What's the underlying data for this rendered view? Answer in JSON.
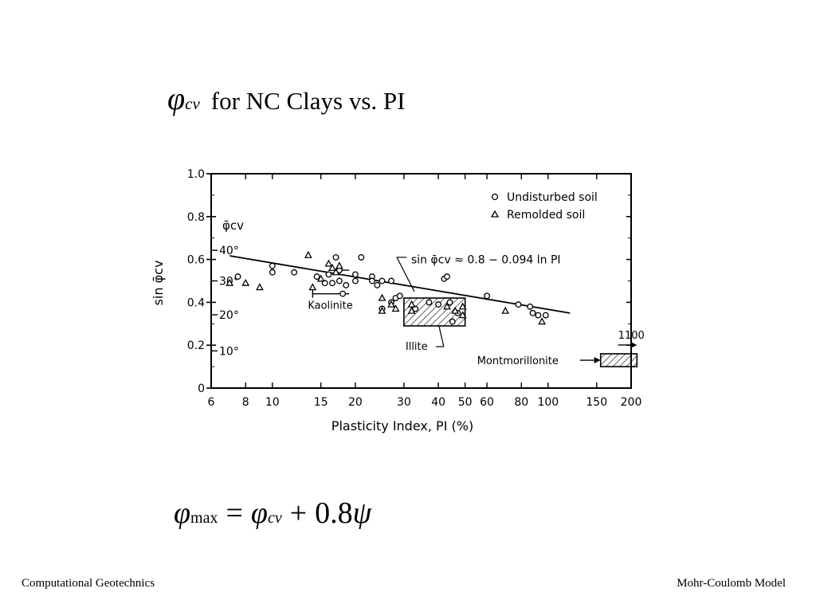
{
  "slide": {
    "title_symbol": "φ",
    "title_subscript": "cv",
    "title_text": "for NC Clays vs. PI",
    "formula": {
      "lhs_symbol": "φ",
      "lhs_subscript": "max",
      "equals": "=",
      "rhs_symbol": "φ",
      "rhs_subscript": "cv",
      "plus": "+",
      "coefficient": "0.8",
      "psi": "ψ"
    },
    "footer_left": "Computational Geotechnics",
    "footer_right": "Mohr-Coulomb Model"
  },
  "chart_data": {
    "type": "scatter",
    "xlabel": "Plasticity Index, PI (%)",
    "ylabel": "sin φ̄cv",
    "x_scale": "log",
    "xlim": [
      6,
      200
    ],
    "ylim": [
      0,
      1.0
    ],
    "x_ticks": [
      6,
      8,
      10,
      15,
      20,
      30,
      40,
      50,
      60,
      80,
      100,
      150,
      200
    ],
    "y_ticks": [
      0,
      0.2,
      0.4,
      0.6,
      0.8,
      1.0
    ],
    "y_tick_labels": [
      "0",
      "0.2",
      "0.4",
      "0.6",
      "0.8",
      "1.0"
    ],
    "angle_axis_label": "φ̄cv",
    "angle_ticks": [
      {
        "label": "40°",
        "deg": 40
      },
      {
        "label": "30°",
        "deg": 30
      },
      {
        "label": "20°",
        "deg": 20
      },
      {
        "label": "10°",
        "deg": 10
      }
    ],
    "legend": [
      {
        "marker": "circle",
        "label": "Undisturbed soil"
      },
      {
        "marker": "triangle",
        "label": "Remolded soil"
      }
    ],
    "legend_position": "top-right",
    "series": [
      {
        "name": "Undisturbed soil",
        "marker": "circle",
        "points": [
          [
            7.5,
            0.52
          ],
          [
            10,
            0.57
          ],
          [
            10,
            0.54
          ],
          [
            12,
            0.54
          ],
          [
            14.5,
            0.52
          ],
          [
            15.5,
            0.49
          ],
          [
            16,
            0.53
          ],
          [
            16.5,
            0.49
          ],
          [
            17,
            0.61
          ],
          [
            17.5,
            0.55
          ],
          [
            17.5,
            0.5
          ],
          [
            18,
            0.44
          ],
          [
            18.5,
            0.48
          ],
          [
            20,
            0.5
          ],
          [
            20,
            0.53
          ],
          [
            21,
            0.61
          ],
          [
            23,
            0.52
          ],
          [
            23,
            0.5
          ],
          [
            24,
            0.48
          ],
          [
            25,
            0.37
          ],
          [
            25,
            0.5
          ],
          [
            27,
            0.5
          ],
          [
            27,
            0.4
          ],
          [
            28,
            0.42
          ],
          [
            29,
            0.43
          ],
          [
            33,
            0.37
          ],
          [
            37,
            0.4
          ],
          [
            40,
            0.39
          ],
          [
            42,
            0.51
          ],
          [
            43,
            0.52
          ],
          [
            44,
            0.4
          ],
          [
            45,
            0.31
          ],
          [
            47,
            0.35
          ],
          [
            60,
            0.43
          ],
          [
            78,
            0.39
          ],
          [
            86,
            0.38
          ],
          [
            88,
            0.35
          ],
          [
            92,
            0.34
          ],
          [
            98,
            0.34
          ]
        ]
      },
      {
        "name": "Remolded soil",
        "marker": "triangle",
        "points": [
          [
            7,
            0.49
          ],
          [
            8,
            0.49
          ],
          [
            9,
            0.47
          ],
          [
            13.5,
            0.62
          ],
          [
            14,
            0.47
          ],
          [
            15,
            0.51
          ],
          [
            16,
            0.58
          ],
          [
            16.5,
            0.56
          ],
          [
            17,
            0.54
          ],
          [
            17.5,
            0.57
          ],
          [
            25,
            0.42
          ],
          [
            25,
            0.36
          ],
          [
            27,
            0.39
          ],
          [
            28,
            0.37
          ],
          [
            32,
            0.36
          ],
          [
            32,
            0.39
          ],
          [
            43,
            0.38
          ],
          [
            46,
            0.36
          ],
          [
            49,
            0.38
          ],
          [
            49,
            0.34
          ],
          [
            70,
            0.36
          ],
          [
            95,
            0.31
          ]
        ]
      }
    ],
    "trend_line": {
      "label": "sin φ̄cv ≈ 0.8 − 0.094 ln PI",
      "x_range": [
        7,
        120
      ]
    },
    "regions": [
      {
        "label": "Kaolinite",
        "x_range": [
          14,
          19
        ],
        "y_range": [
          0.44,
          0.55
        ]
      },
      {
        "label": "Illite",
        "x_range": [
          30,
          50
        ],
        "y_range": [
          0.29,
          0.42
        ]
      },
      {
        "label": "Montmorillonite",
        "x_range": [
          155,
          210
        ],
        "y_range": [
          0.1,
          0.16
        ]
      }
    ],
    "annotation_1100": "1100"
  }
}
